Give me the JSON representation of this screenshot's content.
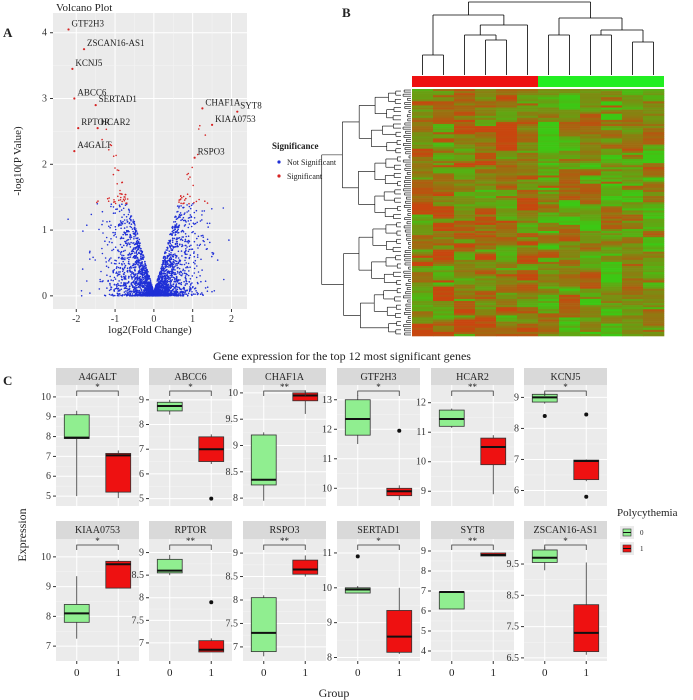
{
  "panels": {
    "a": {
      "letter": "A",
      "title": "Volcano Plot",
      "xlabel": "log2(Fold Change)",
      "ylabel": "-log10(P Value)",
      "legend_title": "Significance",
      "legend": [
        {
          "label": "Not Significant",
          "color": "#1f2fd6"
        },
        {
          "label": "Significant",
          "color": "#d62424"
        }
      ],
      "x_ticks": [
        -2,
        -1,
        0,
        1,
        2
      ],
      "y_ticks": [
        0,
        1,
        2,
        3,
        4
      ]
    },
    "b": {
      "letter": "B",
      "group_colors": [
        "#ee1111",
        "#22ee22"
      ]
    },
    "c": {
      "letter": "C",
      "title": "Gene expression for the top 12 most significant genes",
      "xlabel": "Group",
      "ylabel": "Expression",
      "legend_title": "Polycythemia",
      "legend": [
        {
          "label": "0",
          "color": "#90ee90"
        },
        {
          "label": "1",
          "color": "#ee1111"
        }
      ]
    }
  },
  "chart_data": [
    {
      "type": "scatter",
      "title": "Volcano Plot",
      "xlabel": "log2(Fold Change)",
      "ylabel": "-log10(P Value)",
      "xlim": [
        -2.6,
        2.4
      ],
      "ylim": [
        -0.2,
        4.3
      ],
      "significance_threshold": 1.4,
      "labeled_points": [
        {
          "gene": "GTF2H3",
          "x": -2.2,
          "y": 4.05
        },
        {
          "gene": "ZSCAN16-AS1",
          "x": -1.8,
          "y": 3.75
        },
        {
          "gene": "KCNJ5",
          "x": -2.1,
          "y": 3.45
        },
        {
          "gene": "ABCC6",
          "x": -2.05,
          "y": 3.0
        },
        {
          "gene": "SERTAD1",
          "x": -1.5,
          "y": 2.9
        },
        {
          "gene": "RPTOR",
          "x": -1.95,
          "y": 2.55
        },
        {
          "gene": "HCAR2",
          "x": -1.45,
          "y": 2.55
        },
        {
          "gene": "A4GALT",
          "x": -2.05,
          "y": 2.2
        },
        {
          "gene": "CHAF1A",
          "x": 1.25,
          "y": 2.85
        },
        {
          "gene": "SYT8",
          "x": 2.15,
          "y": 2.8
        },
        {
          "gene": "KIAA0753",
          "x": 1.5,
          "y": 2.6
        },
        {
          "gene": "RSPO3",
          "x": 1.05,
          "y": 2.1
        }
      ]
    },
    {
      "type": "heatmap",
      "rows": 120,
      "columns": 12,
      "column_groups": [
        6,
        6
      ]
    },
    {
      "type": "box",
      "categories": [
        "0",
        "1"
      ],
      "genes": [
        {
          "gene": "A4GALT",
          "sig": "*",
          "ylim": [
            4.5,
            10.6
          ],
          "ticks": [
            5,
            6,
            7,
            8,
            9,
            10
          ],
          "boxes": [
            {
              "min": 5.0,
              "q1": 7.9,
              "median": 7.95,
              "q3": 9.1,
              "max": 9.3,
              "out": []
            },
            {
              "min": 4.9,
              "q1": 5.2,
              "median": 7.05,
              "q3": 7.15,
              "max": 7.3,
              "out": []
            }
          ]
        },
        {
          "gene": "ABCC6",
          "sig": "*",
          "ylim": [
            4.7,
            9.6
          ],
          "ticks": [
            5,
            6,
            7,
            8,
            9
          ],
          "boxes": [
            {
              "min": 8.4,
              "q1": 8.55,
              "median": 8.75,
              "q3": 8.9,
              "max": 9.0,
              "out": []
            },
            {
              "min": 6.4,
              "q1": 6.5,
              "median": 7.0,
              "q3": 7.5,
              "max": 7.6,
              "out": [
                5.0
              ]
            }
          ]
        },
        {
          "gene": "CHAF1A",
          "sig": "**",
          "ylim": [
            7.85,
            10.15
          ],
          "ticks": [
            8.0,
            8.5,
            9.0,
            9.5,
            10.0
          ],
          "boxes": [
            {
              "min": 7.95,
              "q1": 8.25,
              "median": 8.35,
              "q3": 9.2,
              "max": 9.25,
              "out": []
            },
            {
              "min": 9.6,
              "q1": 9.85,
              "median": 9.95,
              "q3": 10.0,
              "max": 10.05,
              "out": []
            }
          ]
        },
        {
          "gene": "GTF2H3",
          "sig": "*",
          "ylim": [
            9.4,
            13.5
          ],
          "ticks": [
            10,
            11,
            12,
            13
          ],
          "boxes": [
            {
              "min": 11.5,
              "q1": 11.8,
              "median": 12.35,
              "q3": 13.0,
              "max": 13.15,
              "out": []
            },
            {
              "min": 9.6,
              "q1": 9.75,
              "median": 9.9,
              "q3": 10.0,
              "max": 10.1,
              "out": [
                11.95
              ]
            }
          ]
        },
        {
          "gene": "HCAR2",
          "sig": "**",
          "ylim": [
            8.5,
            12.6
          ],
          "ticks": [
            9,
            10,
            11,
            12
          ],
          "boxes": [
            {
              "min": 11.15,
              "q1": 11.2,
              "median": 11.45,
              "q3": 11.75,
              "max": 11.8,
              "out": []
            },
            {
              "min": 8.9,
              "q1": 9.9,
              "median": 10.5,
              "q3": 10.8,
              "max": 10.9,
              "out": []
            }
          ]
        },
        {
          "gene": "KCNJ5",
          "sig": "*",
          "ylim": [
            5.5,
            9.4
          ],
          "ticks": [
            6,
            7,
            8,
            9
          ],
          "boxes": [
            {
              "min": 8.8,
              "q1": 8.85,
              "median": 9.0,
              "q3": 9.1,
              "max": 9.15,
              "out": [
                8.4
              ]
            },
            {
              "min": 6.3,
              "q1": 6.35,
              "median": 6.95,
              "q3": 6.98,
              "max": 7.0,
              "out": [
                8.45,
                5.8
              ]
            }
          ]
        },
        {
          "gene": "KIAA0753",
          "sig": "*",
          "ylim": [
            6.5,
            10.6
          ],
          "ticks": [
            7,
            8,
            9,
            10
          ],
          "boxes": [
            {
              "min": 7.25,
              "q1": 7.8,
              "median": 8.1,
              "q3": 8.4,
              "max": 9.35,
              "out": []
            },
            {
              "min": 8.95,
              "q1": 8.95,
              "median": 9.75,
              "q3": 9.85,
              "max": 9.9,
              "out": []
            }
          ]
        },
        {
          "gene": "RPTOR",
          "sig": "**",
          "ylim": [
            6.6,
            9.3
          ],
          "ticks": [
            7.0,
            7.5,
            8.0,
            8.5,
            9.0
          ],
          "boxes": [
            {
              "min": 8.5,
              "q1": 8.55,
              "median": 8.6,
              "q3": 8.85,
              "max": 8.95,
              "out": []
            },
            {
              "min": 6.8,
              "q1": 6.8,
              "median": 6.85,
              "q3": 7.05,
              "max": 7.1,
              "out": [
                7.9
              ]
            }
          ]
        },
        {
          "gene": "RSPO3",
          "sig": "**",
          "ylim": [
            6.7,
            9.3
          ],
          "ticks": [
            7.0,
            7.5,
            8.0,
            8.5,
            9.0
          ],
          "boxes": [
            {
              "min": 6.8,
              "q1": 6.9,
              "median": 7.3,
              "q3": 8.05,
              "max": 8.1,
              "out": []
            },
            {
              "min": 8.5,
              "q1": 8.55,
              "median": 8.65,
              "q3": 8.85,
              "max": 8.95,
              "out": []
            }
          ]
        },
        {
          "gene": "SERTAD1",
          "sig": "*",
          "ylim": [
            7.9,
            11.4
          ],
          "ticks": [
            8,
            9,
            10,
            11
          ],
          "boxes": [
            {
              "min": 9.85,
              "q1": 9.85,
              "median": 9.95,
              "q3": 10.0,
              "max": 10.05,
              "out": [
                10.9
              ]
            },
            {
              "min": 8.1,
              "q1": 8.15,
              "median": 8.6,
              "q3": 9.35,
              "max": 10.0,
              "out": []
            }
          ]
        },
        {
          "gene": "SYT8",
          "sig": "**",
          "ylim": [
            3.5,
            9.6
          ],
          "ticks": [
            4,
            5,
            6,
            7,
            8,
            9
          ],
          "boxes": [
            {
              "min": 6.1,
              "q1": 6.1,
              "median": 6.95,
              "q3": 6.95,
              "max": 6.95,
              "out": []
            },
            {
              "min": 8.75,
              "q1": 8.75,
              "median": 8.8,
              "q3": 8.9,
              "max": 8.9,
              "out": []
            }
          ]
        },
        {
          "gene": "ZSCAN16-AS1",
          "sig": "*",
          "ylim": [
            6.4,
            10.3
          ],
          "ticks": [
            6.5,
            7.5,
            8.5,
            9.5
          ],
          "boxes": [
            {
              "min": 9.3,
              "q1": 9.55,
              "median": 9.7,
              "q3": 9.95,
              "max": 10.05,
              "out": []
            },
            {
              "min": 6.6,
              "q1": 6.7,
              "median": 7.3,
              "q3": 8.2,
              "max": 9.55,
              "out": []
            }
          ]
        }
      ]
    }
  ]
}
